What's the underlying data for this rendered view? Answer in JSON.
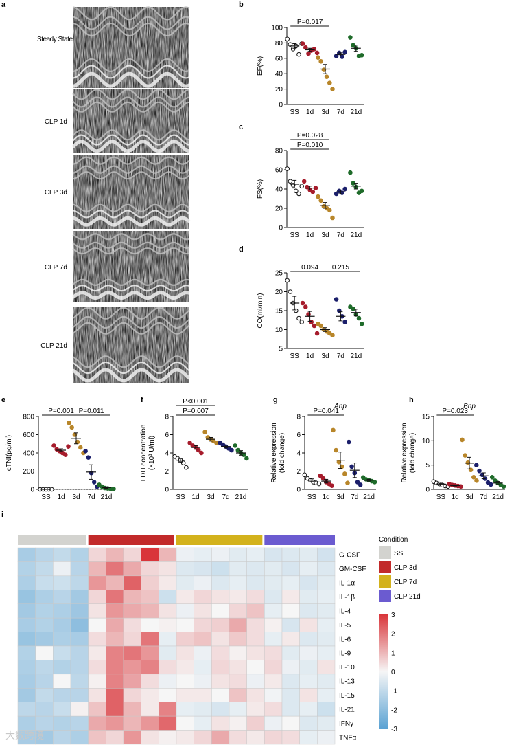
{
  "colors": {
    "SS": "#ffffff",
    "d1": "#a61c2c",
    "d3": "#b8862a",
    "d7": "#1b1f6b",
    "d21": "#1f6b2a",
    "cond_SS": "#d3d3cf",
    "cond_CLP3d": "#c22a2a",
    "cond_CLP7d": "#d3b21c",
    "cond_CLP21d": "#6b5bd0",
    "heat_neg": "#5aa2d3",
    "heat_mid": "#f6f6f6",
    "heat_pos": "#d9353a"
  },
  "panel_letters": {
    "a": "a",
    "b": "b",
    "c": "c",
    "d": "d",
    "e": "e",
    "f": "f",
    "g": "g",
    "h": "h",
    "i": "i"
  },
  "echo_labels": [
    "Steady State",
    "CLP 1d",
    "CLP 3d",
    "CLP 7d",
    "CLP 21d"
  ],
  "watermark": "大数跨境",
  "chart_data": [
    {
      "id": "b",
      "type": "scatter",
      "ylabel": "EF(%)",
      "ylim": [
        0,
        100
      ],
      "yticks": [
        0,
        20,
        40,
        60,
        80,
        100
      ],
      "categories": [
        "SS",
        "1d",
        "3d",
        "7d",
        "21d"
      ],
      "points": [
        [
          85,
          78,
          72,
          76,
          65,
          79
        ],
        [
          79,
          74,
          66,
          70,
          72,
          67
        ],
        [
          61,
          56,
          45,
          36,
          28,
          20
        ],
        [
          63,
          67,
          62,
          68
        ],
        [
          87,
          77,
          73,
          63,
          64
        ]
      ],
      "means": [
        76,
        71,
        46,
        65,
        73
      ],
      "sems": [
        3,
        2,
        6,
        2,
        4
      ],
      "annotations": [
        {
          "text": "P=0.017",
          "from": 0,
          "to": 2,
          "level": 1
        }
      ]
    },
    {
      "id": "c",
      "type": "scatter",
      "ylabel": "FS(%)",
      "ylim": [
        0,
        80
      ],
      "yticks": [
        0,
        20,
        40,
        60,
        80
      ],
      "categories": [
        "SS",
        "1d",
        "3d",
        "7d",
        "21d"
      ],
      "points": [
        [
          61,
          48,
          44,
          38,
          35,
          43
        ],
        [
          48,
          42,
          39,
          37,
          41
        ],
        [
          32,
          28,
          22,
          20,
          18,
          10
        ],
        [
          35,
          38,
          36,
          40
        ],
        [
          57,
          46,
          42,
          36,
          38
        ]
      ],
      "means": [
        45,
        41,
        23,
        37,
        43
      ],
      "sems": [
        4,
        2,
        3,
        2,
        3
      ],
      "annotations": [
        {
          "text": "P=0.010",
          "from": 0,
          "to": 2,
          "level": 1
        },
        {
          "text": "P=0.028",
          "from": 0,
          "to": 2,
          "level": 2
        }
      ]
    },
    {
      "id": "d",
      "type": "scatter",
      "ylabel": "CO(ml/min)",
      "ylim": [
        5,
        25
      ],
      "yticks": [
        5,
        10,
        15,
        20,
        25
      ],
      "categories": [
        "SS",
        "1d",
        "3d",
        "7d",
        "21d"
      ],
      "points": [
        [
          23,
          20,
          17,
          15,
          13,
          12
        ],
        [
          17,
          16,
          14,
          12,
          11,
          9
        ],
        [
          11.5,
          11,
          10,
          9.5,
          9,
          8.5
        ],
        [
          18,
          15,
          13.5,
          12
        ],
        [
          16,
          15.5,
          14,
          13,
          11.5
        ]
      ],
      "means": [
        17,
        13.5,
        10,
        13.5,
        14.5
      ],
      "sems": [
        1.8,
        1.3,
        0.5,
        1.2,
        0.9
      ],
      "annotations": [
        {
          "text": "0.094",
          "from": 0,
          "to": 2,
          "level": 1
        },
        {
          "text": "0.215",
          "from": 2,
          "to": 4,
          "level": 1
        }
      ]
    },
    {
      "id": "e",
      "type": "scatter",
      "ylabel": "cTNI(pg/ml)",
      "ylim": [
        0,
        800
      ],
      "yticks": [
        0,
        200,
        400,
        600,
        800
      ],
      "categories": [
        "SS",
        "1d",
        "3d",
        "7d",
        "21d"
      ],
      "points": [
        [
          0,
          0,
          0,
          0,
          0
        ],
        [
          480,
          440,
          420,
          400,
          380,
          470
        ],
        [
          730,
          680,
          600,
          520,
          460,
          400
        ],
        [
          420,
          350,
          180,
          80,
          30
        ],
        [
          50,
          30,
          15,
          10,
          5,
          5
        ]
      ],
      "means": [
        0,
        430,
        560,
        190,
        20
      ],
      "sems": [
        0,
        15,
        60,
        80,
        8
      ],
      "baseline": 0,
      "annotations": [
        {
          "text": "P=0.001",
          "from": 0,
          "to": 2,
          "level": 1
        },
        {
          "text": "P=0.011",
          "from": 2,
          "to": 4,
          "level": 1
        }
      ]
    },
    {
      "id": "f",
      "type": "scatter",
      "ylabel": "LDH concentration",
      "ylabel2": "(×10³ U/ml)",
      "ylim": [
        0,
        8
      ],
      "yticks": [
        0,
        2,
        4,
        6,
        8
      ],
      "categories": [
        "SS",
        "1d",
        "3d",
        "7d",
        "21d"
      ],
      "points": [
        [
          3.6,
          3.4,
          3.2,
          2.9,
          2.4
        ],
        [
          5.1,
          4.8,
          4.6,
          4.3,
          4.0
        ],
        [
          6.3,
          5.7,
          5.5,
          5.3,
          5.1
        ],
        [
          5.1,
          4.9,
          4.7,
          4.5,
          4.3
        ],
        [
          4.8,
          4.3,
          4.0,
          3.8,
          3.4
        ]
      ],
      "means": [
        3.2,
        4.6,
        5.5,
        4.7,
        4.0
      ],
      "sems": [
        0.2,
        0.2,
        0.2,
        0.15,
        0.25
      ],
      "annotations": [
        {
          "text": "P=0.007",
          "from": 0,
          "to": 2,
          "level": 1
        },
        {
          "text": "P<0.001",
          "from": 0,
          "to": 2,
          "level": 2
        }
      ]
    },
    {
      "id": "g",
      "type": "scatter",
      "title": "Anp",
      "ylabel": "Relative expression",
      "ylabel2": "(fold change)",
      "ylim": [
        0,
        8
      ],
      "yticks": [
        0,
        2,
        4,
        6,
        8
      ],
      "categories": [
        "SS",
        "1d",
        "3d",
        "7d",
        "21d"
      ],
      "points": [
        [
          1.6,
          1.2,
          1.0,
          0.8,
          0.7,
          0.6
        ],
        [
          1.5,
          1.2,
          0.8,
          0.6,
          0.4
        ],
        [
          6.5,
          4.3,
          3.0,
          2.5,
          1.7,
          0.7
        ],
        [
          5.2,
          2.5,
          1.8,
          0.8,
          0.5
        ],
        [
          1.3,
          1.1,
          1.0,
          0.9,
          0.8
        ]
      ],
      "means": [
        1.0,
        0.9,
        3.2,
        2.1,
        1.0
      ],
      "sems": [
        0.15,
        0.2,
        0.9,
        0.8,
        0.1
      ],
      "annotations": [
        {
          "text": "P=0.041",
          "from": 0,
          "to": 2,
          "level": 1
        }
      ]
    },
    {
      "id": "h",
      "type": "scatter",
      "title": "Bnp",
      "ylabel": "Relative expression",
      "ylabel2": "(fold change)",
      "ylim": [
        0,
        15
      ],
      "yticks": [
        0,
        5,
        10,
        15
      ],
      "categories": [
        "SS",
        "1d",
        "3d",
        "7d",
        "21d"
      ],
      "points": [
        [
          1.6,
          1.3,
          1.1,
          0.9,
          0.7,
          0.6
        ],
        [
          1.1,
          0.9,
          0.8,
          0.7,
          0.6
        ],
        [
          10.2,
          7.0,
          5.5,
          4.0,
          2.5,
          1.8
        ],
        [
          5.0,
          3.8,
          3.0,
          2.2,
          1.4,
          1.0
        ],
        [
          2.5,
          1.8,
          1.3,
          0.9,
          0.6
        ]
      ],
      "means": [
        1.1,
        0.8,
        5.4,
        2.8,
        1.3
      ],
      "sems": [
        0.15,
        0.1,
        1.2,
        0.6,
        0.3
      ],
      "annotations": [
        {
          "text": "P=0.023",
          "from": 0,
          "to": 2,
          "level": 1
        }
      ]
    },
    {
      "id": "i",
      "type": "heatmap",
      "legend_title": "Condition",
      "conditions": [
        "SS",
        "CLP 3d",
        "CLP 7d",
        "CLP 21d"
      ],
      "columns_per_condition": [
        4,
        5,
        5,
        4
      ],
      "rows": [
        "G-CSF",
        "GM-CSF",
        "IL-1α",
        "IL-1β",
        "IL-4",
        "IL-5",
        "IL-6",
        "IL-9",
        "IL-10",
        "IL-13",
        "IL-15",
        "IL-21",
        "IFNγ",
        "TNFα"
      ],
      "colorbar_range": [
        -3,
        3
      ],
      "colorbar_ticks": [
        3,
        2,
        1,
        0,
        -1,
        -2,
        -3
      ],
      "values": [
        [
          -1.5,
          -1.2,
          -1.0,
          -1.3,
          0.5,
          1.0,
          0.5,
          3.0,
          1.0,
          -0.2,
          -0.3,
          -0.2,
          -0.4,
          -0.3,
          -0.6,
          -0.5,
          -0.4,
          -0.7
        ],
        [
          -1.3,
          -1.0,
          -0.2,
          -1.2,
          1.0,
          2.0,
          1.2,
          0.5,
          0.3,
          -0.5,
          -0.6,
          -0.8,
          -0.4,
          -0.5,
          -0.4,
          -0.6,
          -0.3,
          -0.5
        ],
        [
          -1.4,
          -0.9,
          -0.8,
          -1.1,
          1.5,
          1.0,
          2.3,
          0.6,
          0.2,
          -0.4,
          -0.2,
          -0.5,
          -0.3,
          -0.5,
          -0.4,
          -0.3,
          -0.6,
          -0.4
        ],
        [
          -1.8,
          -1.4,
          -1.2,
          -1.6,
          0.5,
          2.0,
          1.0,
          0.8,
          -0.8,
          0.2,
          0.5,
          0.3,
          0.2,
          0.4,
          -0.5,
          0.2,
          -0.4,
          -0.3
        ],
        [
          -1.6,
          -1.3,
          -1.4,
          -1.7,
          0.3,
          1.5,
          1.2,
          1.0,
          0.3,
          -0.2,
          0.3,
          0.0,
          0.5,
          0.8,
          -0.3,
          0.0,
          -0.5,
          -0.4
        ],
        [
          -1.5,
          -1.3,
          -1.5,
          -2.0,
          0.0,
          1.2,
          0.4,
          0.0,
          0.1,
          0.0,
          0.5,
          0.6,
          1.2,
          0.4,
          0.1,
          -0.6,
          0.3,
          -0.3
        ],
        [
          -1.8,
          -1.6,
          -1.4,
          -1.5,
          0.4,
          1.0,
          0.5,
          2.0,
          -0.3,
          0.6,
          0.8,
          0.3,
          0.7,
          0.4,
          -0.3,
          0.2,
          -0.5,
          -0.4
        ],
        [
          -1.3,
          0.0,
          -0.9,
          -1.2,
          0.2,
          1.8,
          2.0,
          1.5,
          -0.4,
          0.3,
          -0.2,
          0.4,
          0.1,
          0.3,
          0.4,
          -0.4,
          -0.2,
          -0.3
        ],
        [
          -1.4,
          -1.1,
          -1.3,
          -1.2,
          0.4,
          1.8,
          1.5,
          1.8,
          0.4,
          0.2,
          -0.3,
          0.5,
          0.3,
          0.0,
          0.5,
          -0.2,
          -0.4,
          0.3
        ],
        [
          -1.5,
          -1.2,
          0.0,
          -1.1,
          0.1,
          1.8,
          1.3,
          0.4,
          -0.2,
          0.0,
          -0.2,
          0.3,
          0.4,
          -0.2,
          0.2,
          -0.5,
          -0.3,
          -0.4
        ],
        [
          -1.6,
          -1.0,
          -1.2,
          -1.2,
          0.3,
          2.3,
          0.5,
          0.2,
          0.0,
          0.2,
          0.2,
          0.0,
          0.8,
          0.3,
          -0.1,
          -0.5,
          0.3,
          -0.3
        ],
        [
          -1.1,
          -1.2,
          -0.9,
          0.1,
          0.8,
          2.3,
          1.0,
          0.2,
          1.8,
          -0.3,
          -0.4,
          -0.6,
          -0.3,
          0.2,
          0.4,
          -0.5,
          -0.3,
          -0.8
        ],
        [
          -1.4,
          -1.2,
          -1.3,
          -1.2,
          1.2,
          1.5,
          1.0,
          1.5,
          2.2,
          0.0,
          -0.3,
          0.3,
          0.1,
          0.6,
          -0.2,
          0.0,
          -0.5,
          -0.4
        ],
        [
          -1.5,
          -1.6,
          -1.2,
          -1.4,
          0.8,
          0.5,
          1.5,
          0.3,
          0.1,
          0.2,
          0.5,
          1.2,
          0.4,
          0.2,
          0.5,
          0.4,
          -0.3,
          -0.2
        ]
      ]
    }
  ]
}
